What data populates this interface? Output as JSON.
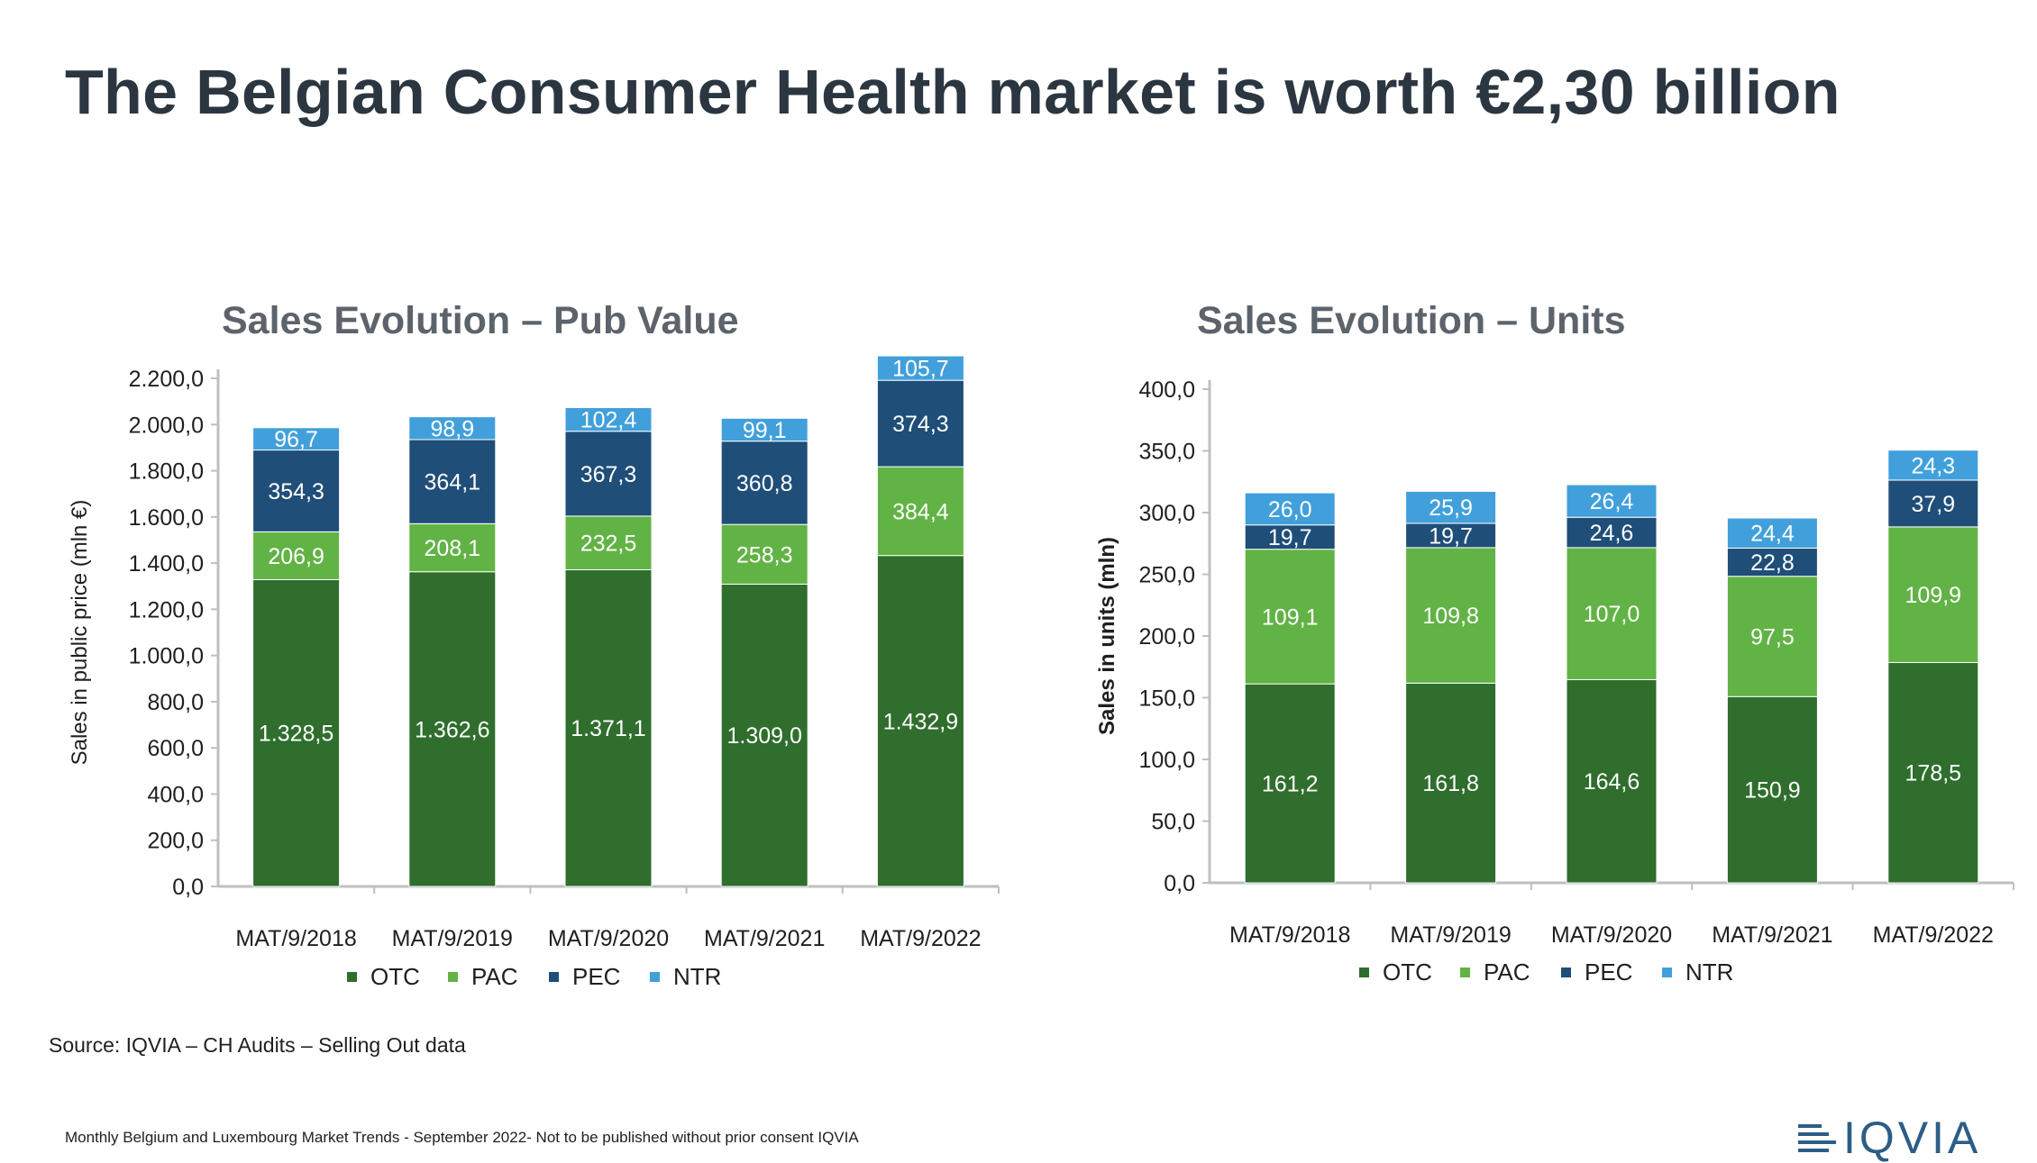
{
  "page": {
    "title": "The Belgian Consumer Health market is worth €2,30 billion",
    "source": "Source: IQVIA – CH Audits – Selling Out data",
    "footer": "Monthly Belgium and Luxembourg Market Trends - September 2022- Not to be published without prior consent IQVIA",
    "logo_text": "IQVIA"
  },
  "colors": {
    "OTC": "#2f6e2d",
    "PAC": "#62b345",
    "PEC": "#1f4e79",
    "NTR": "#41a0db"
  },
  "chart_data": [
    {
      "type": "bar",
      "stacked": true,
      "title": "Sales Evolution – Pub Value",
      "xlabel": "",
      "ylabel": "Sales in public price (mln €)",
      "ylim": [
        0,
        2200
      ],
      "yticks": [
        "0,0",
        "200,0",
        "400,0",
        "600,0",
        "800,0",
        "1.000,0",
        "1.200,0",
        "1.400,0",
        "1.600,0",
        "1.800,0",
        "2.000,0",
        "2.200,0"
      ],
      "categories": [
        "MAT/9/2018",
        "MAT/9/2019",
        "MAT/9/2020",
        "MAT/9/2021",
        "MAT/9/2022"
      ],
      "series": [
        {
          "name": "OTC",
          "values": [
            1328.5,
            1362.6,
            1371.1,
            1309.0,
            1432.9
          ],
          "labels": [
            "1.328,5",
            "1.362,6",
            "1.371,1",
            "1.309,0",
            "1.432,9"
          ]
        },
        {
          "name": "PAC",
          "values": [
            206.9,
            208.1,
            232.5,
            258.3,
            384.4
          ],
          "labels": [
            "206,9",
            "208,1",
            "232,5",
            "258,3",
            "384,4"
          ]
        },
        {
          "name": "PEC",
          "values": [
            354.3,
            364.1,
            367.3,
            360.8,
            374.3
          ],
          "labels": [
            "354,3",
            "364,1",
            "367,3",
            "360,8",
            "374,3"
          ]
        },
        {
          "name": "NTR",
          "values": [
            96.7,
            98.9,
            102.4,
            99.1,
            105.7
          ],
          "labels": [
            "96,7",
            "98,9",
            "102,4",
            "99,1",
            "105,7"
          ]
        }
      ],
      "legend": "bottom"
    },
    {
      "type": "bar",
      "stacked": true,
      "title": "Sales Evolution – Units",
      "xlabel": "",
      "ylabel": "Sales in units (mln)",
      "ylim": [
        0,
        400
      ],
      "yticks": [
        "0,0",
        "50,0",
        "100,0",
        "150,0",
        "200,0",
        "250,0",
        "300,0",
        "350,0",
        "400,0"
      ],
      "categories": [
        "MAT/9/2018",
        "MAT/9/2019",
        "MAT/9/2020",
        "MAT/9/2021",
        "MAT/9/2022"
      ],
      "series": [
        {
          "name": "OTC",
          "values": [
            161.2,
            161.8,
            164.6,
            150.9,
            178.5
          ],
          "labels": [
            "161,2",
            "161,8",
            "164,6",
            "150,9",
            "178,5"
          ]
        },
        {
          "name": "PAC",
          "values": [
            109.1,
            109.8,
            107.0,
            97.5,
            109.9
          ],
          "labels": [
            "109,1",
            "109,8",
            "107,0",
            "97,5",
            "109,9"
          ]
        },
        {
          "name": "PEC",
          "values": [
            19.7,
            19.7,
            24.6,
            22.8,
            37.9
          ],
          "labels": [
            "19,7",
            "19,7",
            "24,6",
            "22,8",
            "37,9"
          ]
        },
        {
          "name": "NTR",
          "values": [
            26.0,
            25.9,
            26.4,
            24.4,
            24.3
          ],
          "labels": [
            "26,0",
            "25,9",
            "26,4",
            "24,4",
            "24,3"
          ]
        }
      ],
      "legend": "bottom"
    }
  ]
}
